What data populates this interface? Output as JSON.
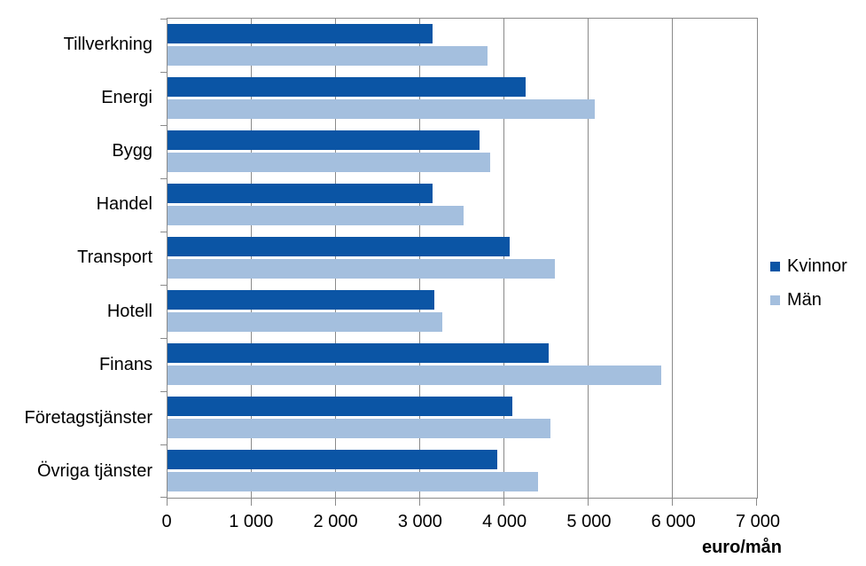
{
  "chart_data": {
    "type": "bar",
    "orientation": "horizontal",
    "title": "",
    "xlabel": "euro/mån",
    "ylabel": "",
    "xlim": [
      0,
      7000
    ],
    "grid": "vertical",
    "legend_position": "right",
    "categories": [
      "Tillverkning",
      "Energi",
      "Bygg",
      "Handel",
      "Transport",
      "Hotell",
      "Finans",
      "Företagstjänster",
      "Övriga tjänster"
    ],
    "series": [
      {
        "name": "Kvinnor",
        "color": "#0b55a5",
        "values": [
          3150,
          4250,
          3700,
          3150,
          4060,
          3170,
          4530,
          4090,
          3920
        ]
      },
      {
        "name": "Män",
        "color": "#a4bfde",
        "values": [
          3800,
          5070,
          3830,
          3520,
          4600,
          3260,
          5860,
          4550,
          4400
        ]
      }
    ],
    "x_ticks": [
      {
        "value": 0,
        "label": "0"
      },
      {
        "value": 1000,
        "label": "1 000"
      },
      {
        "value": 2000,
        "label": "2 000"
      },
      {
        "value": 3000,
        "label": "3 000"
      },
      {
        "value": 4000,
        "label": "4 000"
      },
      {
        "value": 5000,
        "label": "5 000"
      },
      {
        "value": 6000,
        "label": "6 000"
      },
      {
        "value": 7000,
        "label": "7 000"
      }
    ]
  },
  "styles": {
    "grid_color": "#8a8a8a",
    "text_color": "#000000",
    "background": "#ffffff"
  }
}
